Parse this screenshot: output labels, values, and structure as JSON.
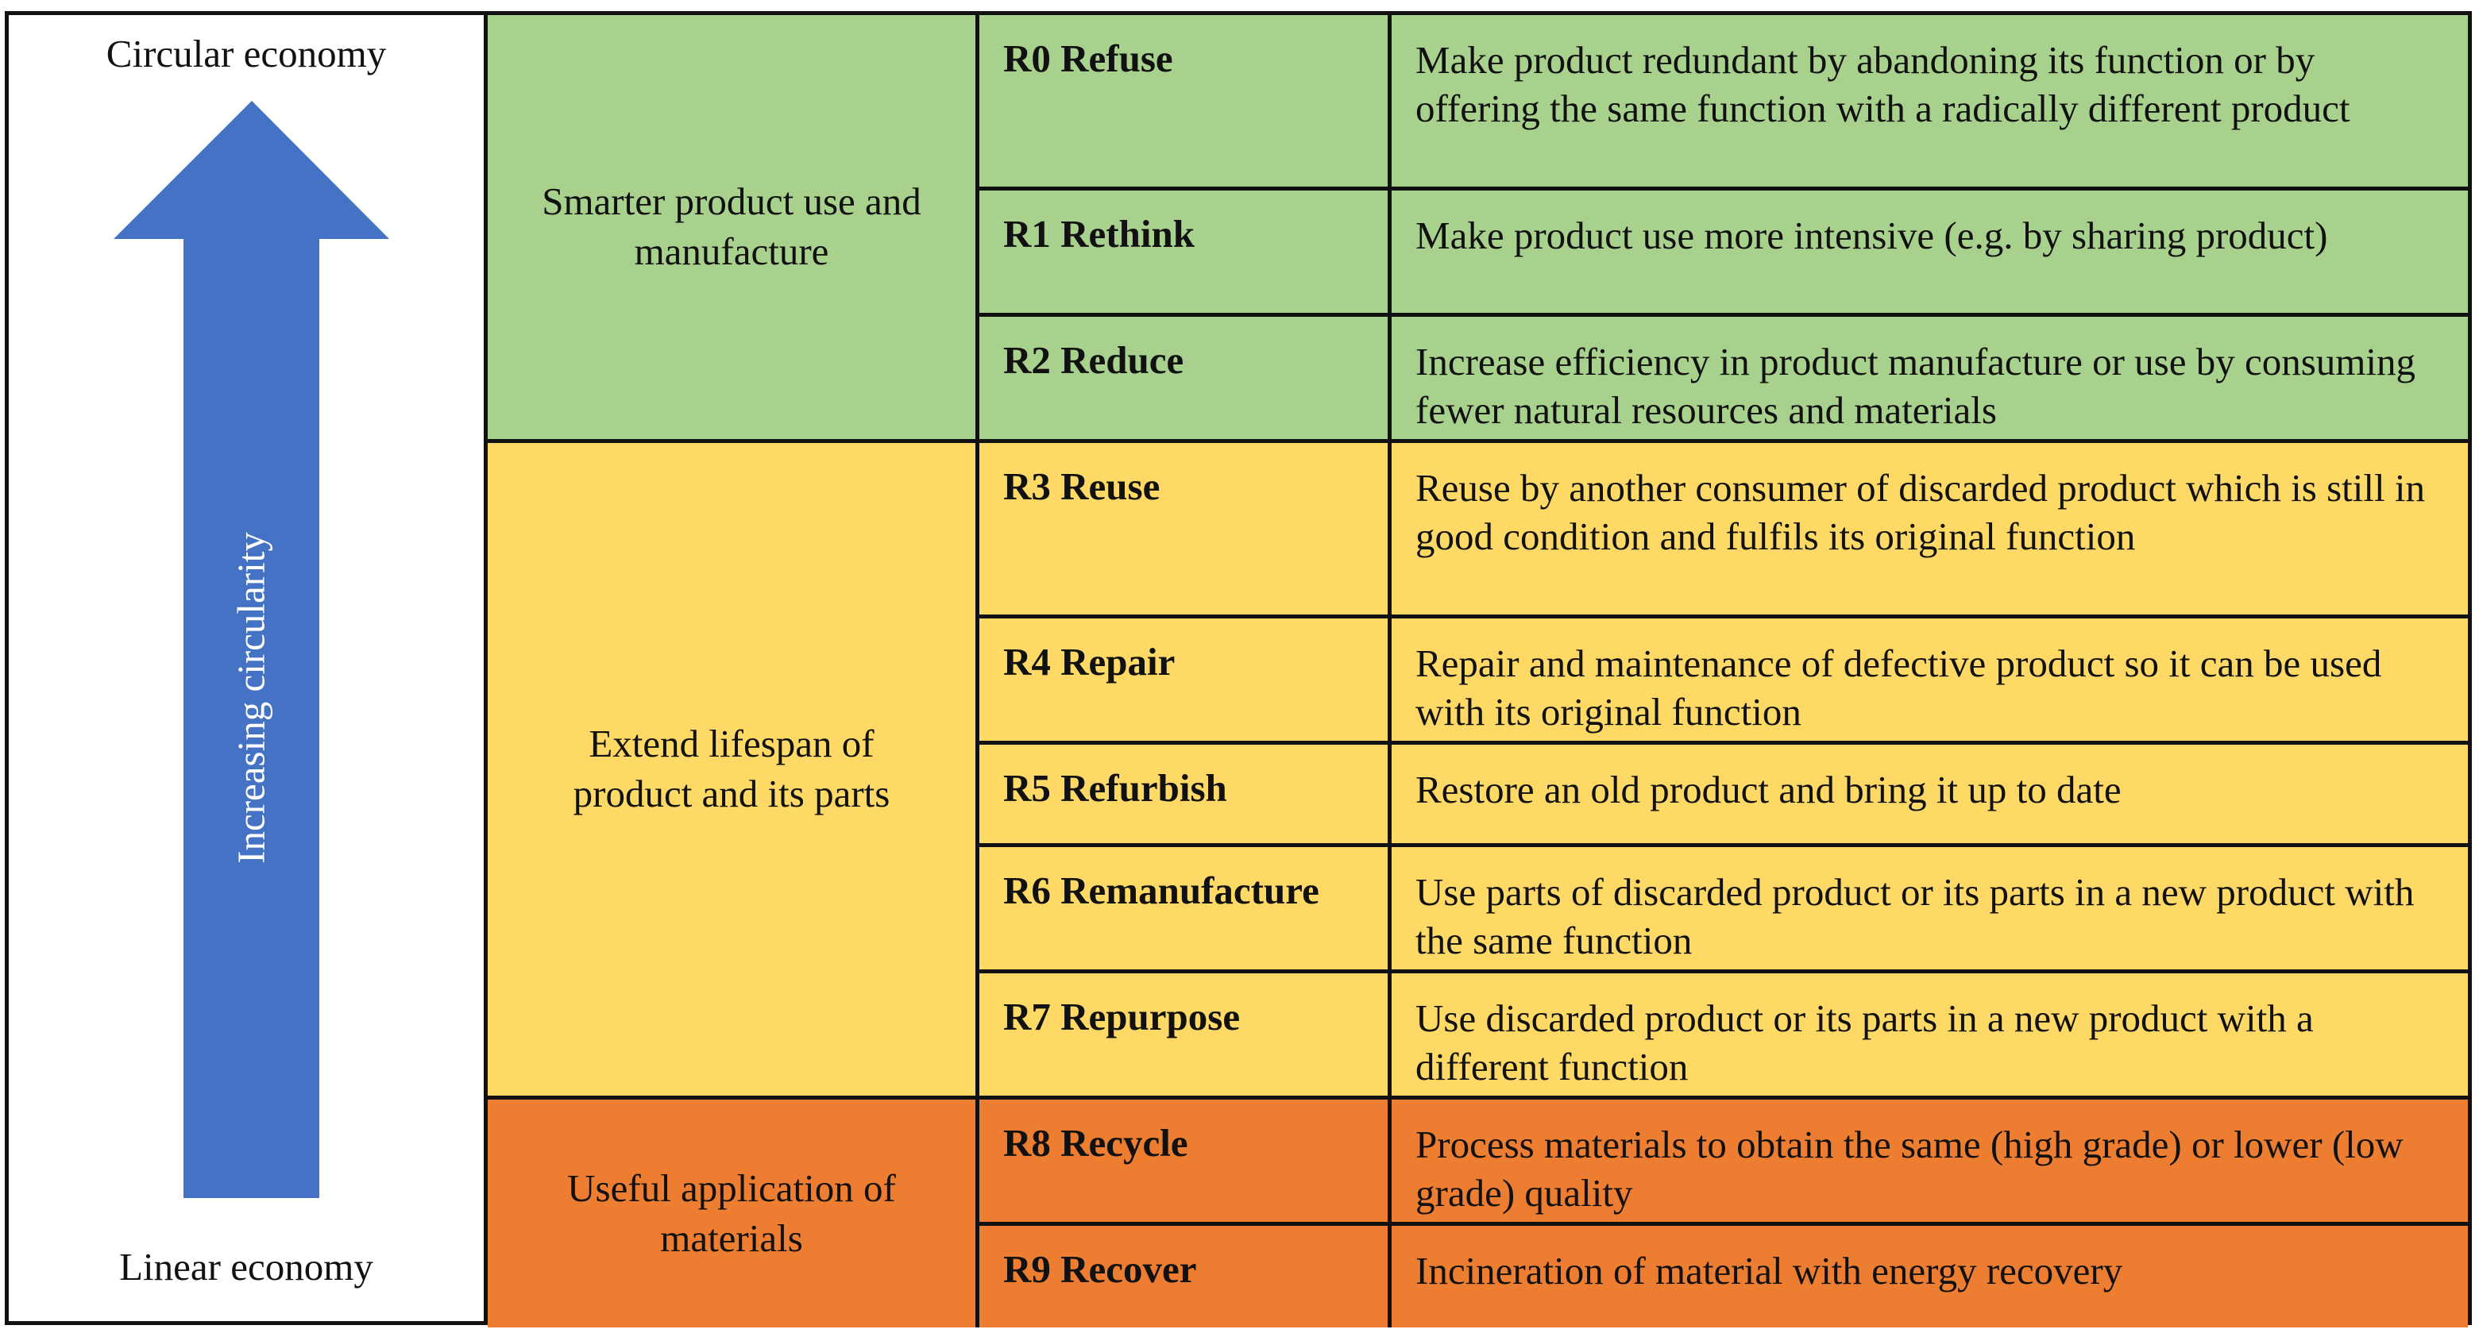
{
  "axis": {
    "top_label": "Circular economy",
    "bottom_label": "Linear economy",
    "arrow_label": "Increasing circularity",
    "arrow_icon": "up-arrow-icon",
    "arrow_color": "#4472C4"
  },
  "groups": [
    {
      "label": "Smarter product use and manufacture",
      "color": "#A9D18E"
    },
    {
      "label": "Extend lifespan of product and its parts",
      "color": "#FFD966"
    },
    {
      "label": "Useful application of materials",
      "color": "#ED7D31"
    }
  ],
  "strategies": [
    {
      "code": "R0 Refuse",
      "description": "Make product redundant by abandoning its function or by offering the same function with a radically different product"
    },
    {
      "code": "R1 Rethink",
      "description": "Make product use more intensive (e.g. by sharing product)"
    },
    {
      "code": "R2 Reduce",
      "description": "Increase efficiency in product manufacture or use by consuming fewer natural resources and materials"
    },
    {
      "code": "R3 Reuse",
      "description": "Reuse by another consumer of discarded product which is still in good condition and fulfils its original function"
    },
    {
      "code": "R4 Repair",
      "description": "Repair and maintenance of defective product so it can be used with its original function"
    },
    {
      "code": "R5 Refurbish",
      "description": "Restore an old product and bring it up to date"
    },
    {
      "code": "R6 Remanufacture",
      "description": "Use parts of discarded product or its parts in a new product with the same function"
    },
    {
      "code": "R7 Repurpose",
      "description": "Use discarded product or its parts in a new product with a different function"
    },
    {
      "code": "R8 Recycle",
      "description": "Process materials to obtain the same (high grade) or lower (low grade) quality"
    },
    {
      "code": "R9 Recover",
      "description": "Incineration of material with energy recovery"
    }
  ]
}
